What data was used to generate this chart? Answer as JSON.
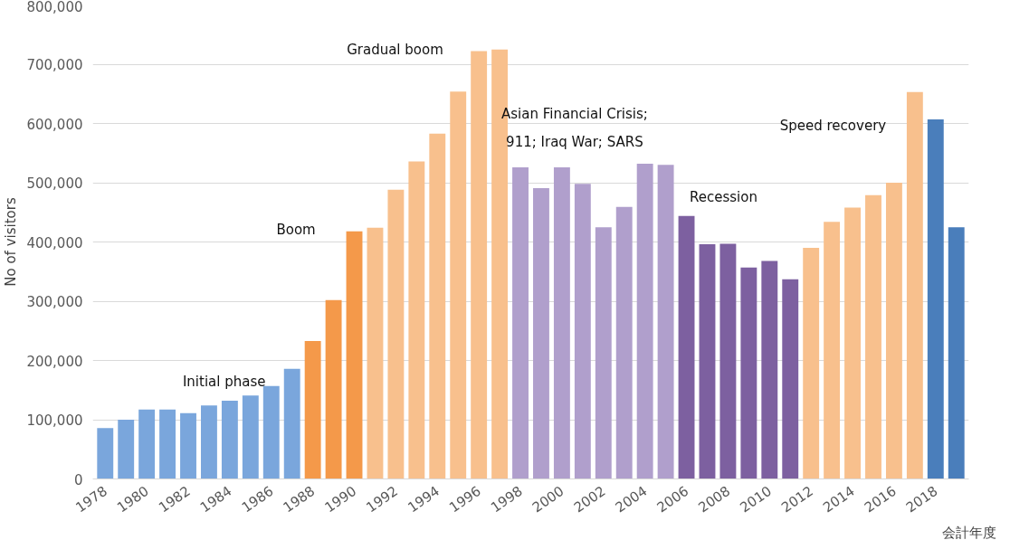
{
  "chart_data": {
    "type": "bar",
    "ylabel": "No of visitors",
    "xlabel": "会計年度",
    "categories": [
      "1978",
      null,
      "1980",
      null,
      "1982",
      null,
      "1984",
      null,
      "1986",
      null,
      "1988",
      null,
      "1990",
      null,
      "1992",
      null,
      "1994",
      null,
      "1996",
      null,
      "1998",
      null,
      "2000",
      null,
      "2002",
      null,
      "2004",
      null,
      "2006",
      null,
      "2008",
      null,
      "2010",
      null,
      "2012",
      null,
      "2014",
      null,
      "2016",
      null,
      "2018",
      null
    ],
    "values": [
      86000,
      100000,
      117000,
      117000,
      111000,
      124000,
      132000,
      141000,
      157000,
      186000,
      233000,
      302000,
      418000,
      424000,
      488000,
      536000,
      583000,
      654000,
      722000,
      725000,
      526000,
      491000,
      526000,
      498000,
      425000,
      459000,
      532000,
      530000,
      444000,
      396000,
      397000,
      357000,
      368000,
      337000,
      390000,
      434000,
      458000,
      479000,
      500000,
      653000,
      607000,
      425000
    ],
    "colors": [
      "#7aa6dc",
      "#7aa6dc",
      "#7aa6dc",
      "#7aa6dc",
      "#7aa6dc",
      "#7aa6dc",
      "#7aa6dc",
      "#7aa6dc",
      "#7aa6dc",
      "#7aa6dc",
      "#f4994a",
      "#f4994a",
      "#f4994a",
      "#f8c08d",
      "#f8c08d",
      "#f8c08d",
      "#f8c08d",
      "#f8c08d",
      "#f8c08d",
      "#f8c08d",
      "#b09fcc",
      "#b09fcc",
      "#b09fcc",
      "#b09fcc",
      "#b09fcc",
      "#b09fcc",
      "#b09fcc",
      "#b09fcc",
      "#7d60a0",
      "#7d60a0",
      "#7d60a0",
      "#7d60a0",
      "#7d60a0",
      "#7d60a0",
      "#f8c08d",
      "#f8c08d",
      "#f8c08d",
      "#f8c08d",
      "#f8c08d",
      "#f8c08d",
      "#4a7ebb",
      "#4a7ebb"
    ],
    "ylim": [
      0,
      800000
    ],
    "yticks": [
      {
        "value": 0,
        "label": "0"
      },
      {
        "value": 100000,
        "label": "100,000"
      },
      {
        "value": 200000,
        "label": "200,000"
      },
      {
        "value": 300000,
        "label": "300,000"
      },
      {
        "value": 400000,
        "label": "400,000"
      },
      {
        "value": 500000,
        "label": "500,000"
      },
      {
        "value": 600000,
        "label": "600,000"
      },
      {
        "value": 700000,
        "label": "700,000"
      },
      {
        "value": 800000,
        "label": "800,000"
      }
    ],
    "grid": "y",
    "annotations": [
      "Initial phase",
      "Boom",
      "Gradual boom",
      "Asian Financial Crisis;\n911; Iraq War; SARS",
      "Recession",
      "Speed recovery"
    ]
  }
}
